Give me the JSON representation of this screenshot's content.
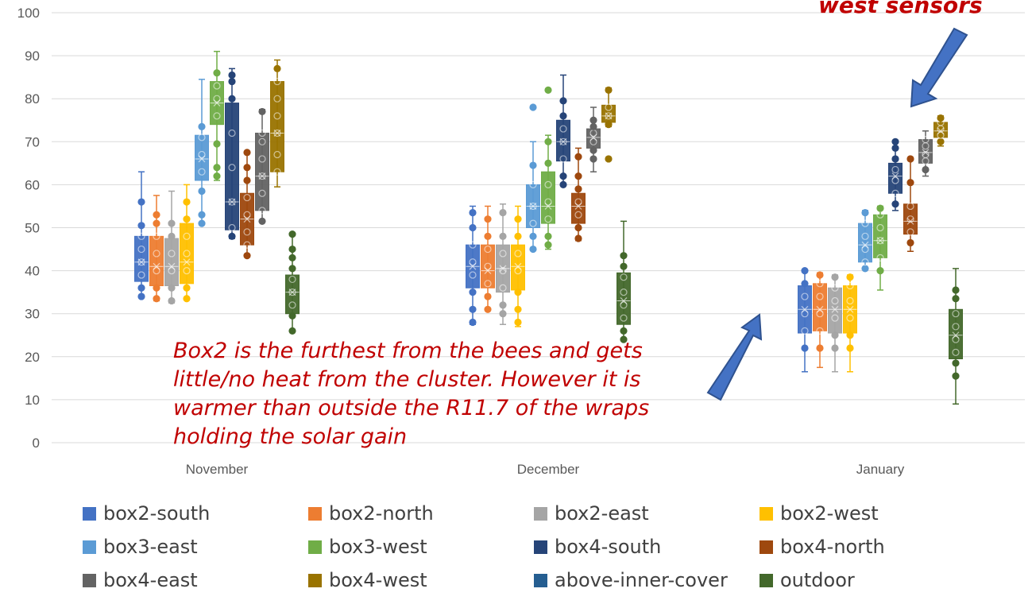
{
  "chart_data": {
    "type": "box",
    "ylim": [
      0,
      100
    ],
    "yticks": [
      "0",
      "10",
      "20",
      "30",
      "40",
      "50",
      "60",
      "70",
      "80",
      "90",
      "100"
    ],
    "categories": [
      "November",
      "December",
      "January"
    ],
    "grid": "horizontal",
    "legend_position": "bottom",
    "series": [
      {
        "name": "box2-south",
        "color": "#4472c4",
        "data": [
          {
            "min": 34,
            "q1": 37.5,
            "median": 42,
            "q3": 48,
            "max": 63,
            "points": [
              34,
              36,
              39,
              42,
              45,
              48,
              50.5,
              56
            ]
          },
          {
            "min": 27.5,
            "q1": 36,
            "median": 41,
            "q3": 46,
            "max": 55,
            "points": [
              28,
              31,
              35,
              39,
              42,
              46,
              50,
              53.5
            ]
          },
          {
            "min": 16.5,
            "q1": 25.5,
            "median": 31,
            "q3": 36.5,
            "max": 40,
            "points": [
              22,
              26,
              30,
              34,
              37,
              40
            ]
          }
        ]
      },
      {
        "name": "box2-north",
        "color": "#ed7d31",
        "data": [
          {
            "min": 33,
            "q1": 36.5,
            "median": 41,
            "q3": 48,
            "max": 57.5,
            "points": [
              33.5,
              36,
              40,
              44,
              48,
              51,
              53
            ]
          },
          {
            "min": 31,
            "q1": 36,
            "median": 40,
            "q3": 46,
            "max": 55,
            "points": [
              31,
              34,
              37,
              41,
              45,
              48,
              52
            ]
          },
          {
            "min": 17.5,
            "q1": 26,
            "median": 31,
            "q3": 37,
            "max": 39.5,
            "points": [
              22,
              26,
              30,
              34,
              37,
              39
            ]
          }
        ]
      },
      {
        "name": "box2-east",
        "color": "#a5a5a5",
        "data": [
          {
            "min": 32.5,
            "q1": 36.5,
            "median": 41,
            "q3": 47.5,
            "max": 58.5,
            "points": [
              33,
              36,
              40,
              44,
              48,
              51
            ]
          },
          {
            "min": 27.5,
            "q1": 35,
            "median": 40.5,
            "q3": 46,
            "max": 55.5,
            "points": [
              30,
              32,
              36,
              40,
              44,
              48,
              53.5
            ]
          },
          {
            "min": 16.5,
            "q1": 25.5,
            "median": 31,
            "q3": 36,
            "max": 39,
            "points": [
              22,
              25,
              29,
              33,
              36,
              38.5
            ]
          }
        ]
      },
      {
        "name": "box2-west",
        "color": "#ffc000",
        "data": [
          {
            "min": 33.5,
            "q1": 37,
            "median": 42,
            "q3": 51,
            "max": 60,
            "points": [
              33.5,
              36,
              40,
              44,
              48,
              52,
              56
            ]
          },
          {
            "min": 27,
            "q1": 35.5,
            "median": 41,
            "q3": 46,
            "max": 55,
            "points": [
              28,
              31,
              35,
              40,
              44,
              48,
              52
            ]
          },
          {
            "min": 16.5,
            "q1": 25.5,
            "median": 31,
            "q3": 36.5,
            "max": 39,
            "points": [
              22,
              25,
              29,
              33,
              36.5,
              38.5
            ]
          }
        ]
      },
      {
        "name": "box3-east",
        "color": "#5b9bd5",
        "data": [
          {
            "min": 51,
            "q1": 61,
            "median": 66,
            "q3": 71.5,
            "max": 84.5,
            "points": [
              51,
              53,
              58.5,
              63,
              67,
              71,
              73.5
            ]
          },
          {
            "min": 45,
            "q1": 50,
            "median": 55,
            "q3": 60,
            "max": 70,
            "points": [
              45,
              48,
              51,
              55,
              60,
              64.5,
              78
            ]
          },
          {
            "min": 40.5,
            "q1": 42,
            "median": 46,
            "q3": 51,
            "max": 54,
            "points": [
              40.5,
              42,
              45,
              48,
              51,
              53.5
            ]
          }
        ]
      },
      {
        "name": "box3-west",
        "color": "#70ad47",
        "data": [
          {
            "min": 61,
            "q1": 74,
            "median": 79,
            "q3": 84,
            "max": 91,
            "points": [
              62,
              64,
              69.5,
              76,
              80,
              83,
              86
            ]
          },
          {
            "min": 45,
            "q1": 51,
            "median": 55,
            "q3": 63,
            "max": 71.5,
            "points": [
              46,
              48,
              52,
              56,
              60,
              65,
              70,
              82
            ]
          },
          {
            "min": 35.5,
            "q1": 43,
            "median": 47,
            "q3": 53,
            "max": 55,
            "points": [
              40,
              43,
              47,
              50,
              53,
              54.5
            ]
          }
        ]
      },
      {
        "name": "box4-south",
        "color": "#264478",
        "data": [
          {
            "min": 47.5,
            "q1": 49.5,
            "median": 56,
            "q3": 79,
            "max": 87,
            "points": [
              48,
              50,
              56,
              64,
              72,
              80,
              84,
              85.5
            ]
          },
          {
            "min": 60,
            "q1": 65.5,
            "median": 70,
            "q3": 75,
            "max": 85.5,
            "points": [
              60,
              62,
              66,
              70,
              73,
              76,
              79.5
            ]
          },
          {
            "min": 54,
            "q1": 58,
            "median": 62,
            "q3": 65,
            "max": 70,
            "points": [
              55.5,
              58,
              61,
              63.5,
              66,
              68.5,
              70
            ]
          }
        ]
      },
      {
        "name": "box4-north",
        "color": "#9e480e",
        "data": [
          {
            "min": 43.5,
            "q1": 46,
            "median": 52,
            "q3": 58,
            "max": 67.5,
            "points": [
              43.5,
              46,
              49,
              53,
              57,
              61,
              64,
              67.5
            ]
          },
          {
            "min": 47,
            "q1": 51,
            "median": 55,
            "q3": 58,
            "max": 68.5,
            "points": [
              47.5,
              50,
              53,
              56,
              59,
              62,
              66.5
            ]
          },
          {
            "min": 44.5,
            "q1": 48.5,
            "median": 51.5,
            "q3": 55.5,
            "max": 66,
            "points": [
              46.5,
              49,
              52,
              55,
              60.5,
              66
            ]
          }
        ]
      },
      {
        "name": "box4-east",
        "color": "#636363",
        "data": [
          {
            "min": 51.5,
            "q1": 54,
            "median": 62,
            "q3": 72,
            "max": 77.5,
            "points": [
              51.5,
              54,
              58,
              62,
              66,
              70,
              72,
              77
            ]
          },
          {
            "min": 63,
            "q1": 68.5,
            "median": 71,
            "q3": 73,
            "max": 78,
            "points": [
              66,
              68,
              70,
              72,
              73.5,
              75
            ]
          },
          {
            "min": 62,
            "q1": 65,
            "median": 67.5,
            "q3": 70.5,
            "max": 72.5,
            "points": [
              63.5,
              65.5,
              67,
              69,
              70.5
            ]
          }
        ]
      },
      {
        "name": "box4-west",
        "color": "#997300",
        "data": [
          {
            "min": 59.5,
            "q1": 63,
            "median": 72,
            "q3": 84,
            "max": 89,
            "points": [
              63,
              67,
              72,
              76,
              80,
              84,
              87
            ]
          },
          {
            "min": 73.5,
            "q1": 74.5,
            "median": 76,
            "q3": 78.5,
            "max": 82.5,
            "points": [
              66,
              74,
              76,
              78,
              82
            ]
          },
          {
            "min": 69,
            "q1": 71,
            "median": 72.5,
            "q3": 74.5,
            "max": 76,
            "points": [
              70,
              71.5,
              73,
              74.5,
              75.5
            ]
          }
        ]
      },
      {
        "name": "above-inner-cover",
        "color": "#255e91",
        "data": [
          null,
          null,
          null
        ]
      },
      {
        "name": "outdoor",
        "color": "#43682b",
        "data": [
          {
            "min": 26,
            "q1": 30,
            "median": 35,
            "q3": 39,
            "max": 48.5,
            "points": [
              26,
              29.5,
              32,
              35,
              38,
              40.5,
              43,
              45,
              48.5
            ]
          },
          {
            "min": 24,
            "q1": 27.5,
            "median": 33,
            "q3": 39.5,
            "max": 51.5,
            "points": [
              24,
              26,
              29,
              32,
              35,
              38.5,
              41,
              43.5
            ]
          },
          {
            "min": 9,
            "q1": 19.5,
            "median": 25,
            "q3": 31,
            "max": 40.5,
            "points": [
              15.5,
              18.5,
              21,
              24,
              27,
              30,
              33.5,
              35.5
            ]
          }
        ]
      }
    ]
  },
  "annotations": {
    "note_main": "Box2 is the furthest from the bees and gets little/no heat from the cluster. However it is warmer than outside the R11.7 of the wraps holding the solar gain",
    "note_top": "west sensors"
  }
}
